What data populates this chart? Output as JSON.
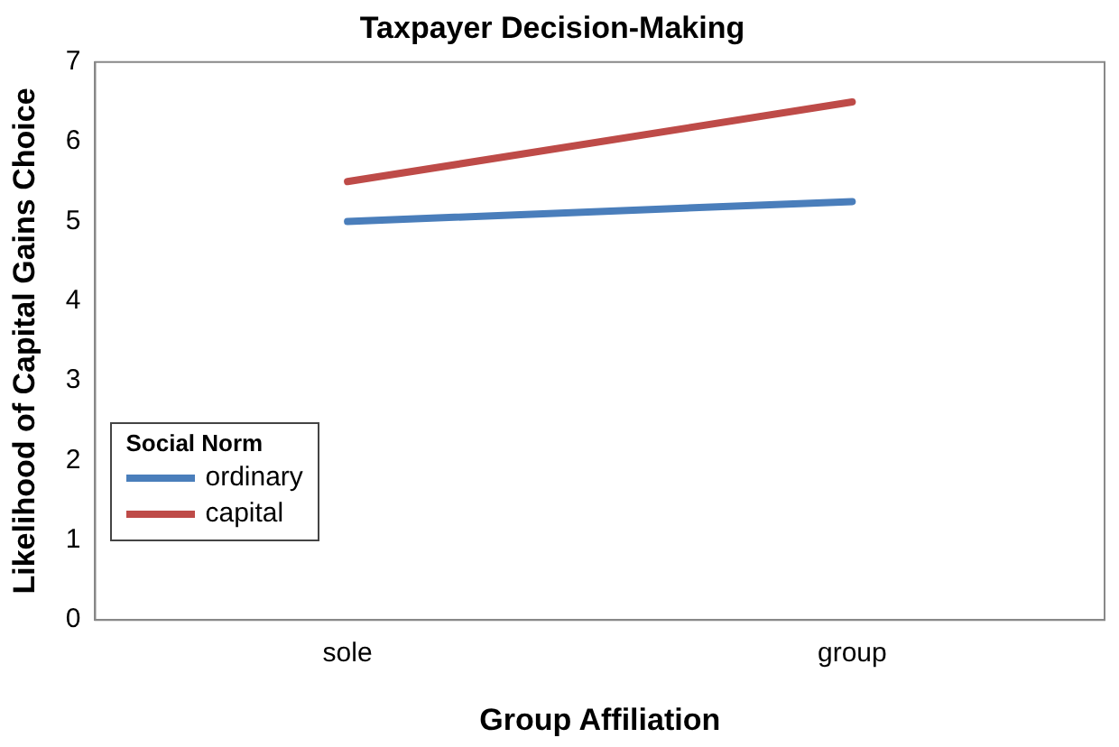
{
  "chart_data": {
    "type": "line",
    "title": "Taxpayer Decision-Making",
    "xlabel": "Group Affiliation",
    "ylabel": "Likelihood of Capital Gains Choice",
    "legend_title": "Social Norm",
    "categories": [
      "sole",
      "group"
    ],
    "series": [
      {
        "name": "ordinary",
        "color": "#4a7ebb",
        "values": [
          5.0,
          5.25
        ]
      },
      {
        "name": "capital",
        "color": "#be4b48",
        "values": [
          5.5,
          6.5
        ]
      }
    ],
    "ylim": [
      0,
      7
    ],
    "yticks": [
      0,
      1,
      2,
      3,
      4,
      5,
      6,
      7
    ],
    "grid": false,
    "legend": "bottom left",
    "marker": "none",
    "line_style": "solid"
  }
}
